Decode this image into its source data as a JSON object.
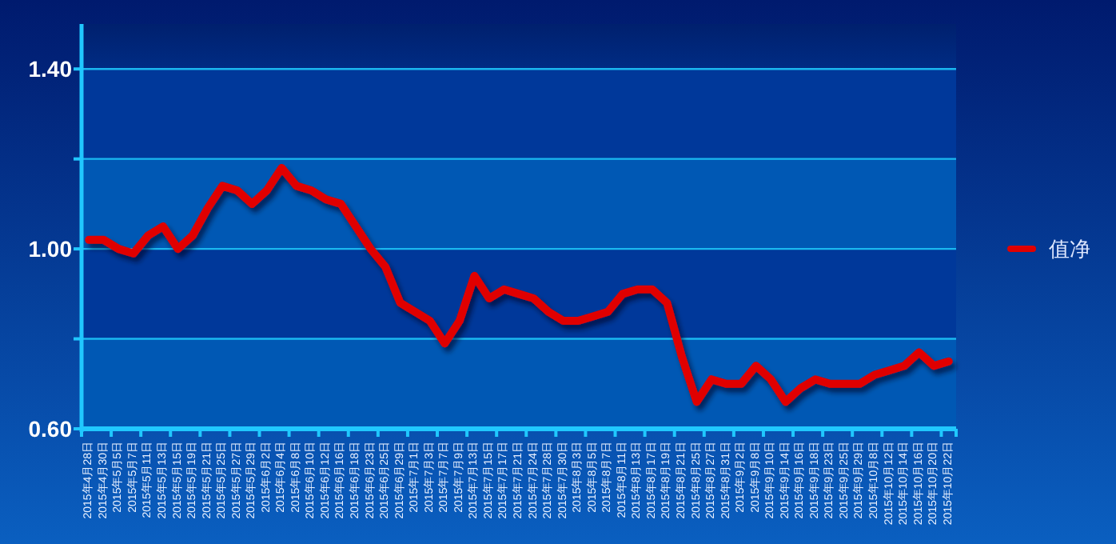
{
  "chart_data": {
    "type": "line",
    "categories": [
      "2015年4月28日",
      "2015年4月30日",
      "2015年5月5日",
      "2015年5月7日",
      "2015年5月11日",
      "2015年5月13日",
      "2015年5月15日",
      "2015年5月19日",
      "2015年5月21日",
      "2015年5月25日",
      "2015年5月27日",
      "2015年5月29日",
      "2015年6月2日",
      "2015年6月4日",
      "2015年6月8日",
      "2015年6月10日",
      "2015年6月12日",
      "2015年6月16日",
      "2015年6月18日",
      "2015年6月23日",
      "2015年6月25日",
      "2015年6月29日",
      "2015年7月1日",
      "2015年7月3日",
      "2015年7月7日",
      "2015年7月9日",
      "2015年7月13日",
      "2015年7月15日",
      "2015年7月17日",
      "2015年7月21日",
      "2015年7月24日",
      "2015年7月28日",
      "2015年7月30日",
      "2015年8月3日",
      "2015年8月5日",
      "2015年8月7日",
      "2015年8月11日",
      "2015年8月13日",
      "2015年8月17日",
      "2015年8月19日",
      "2015年8月21日",
      "2015年8月25日",
      "2015年8月27日",
      "2015年8月31日",
      "2015年9月2日",
      "2015年9月8日",
      "2015年9月10日",
      "2015年9月14日",
      "2015年9月16日",
      "2015年9月18日",
      "2015年9月23日",
      "2015年9月25日",
      "2015年9月29日",
      "2015年10月8日",
      "2015年10月12日",
      "2015年10月14日",
      "2015年10月16日",
      "2015年10月20日",
      "2015年10月22日"
    ],
    "series": [
      {
        "name": "值净",
        "color": "#e00000",
        "values": [
          1.02,
          1.02,
          1.0,
          0.99,
          1.03,
          1.05,
          1.0,
          1.03,
          1.09,
          1.14,
          1.13,
          1.1,
          1.13,
          1.18,
          1.14,
          1.13,
          1.11,
          1.1,
          1.05,
          1.0,
          0.96,
          0.88,
          0.86,
          0.84,
          0.79,
          0.84,
          0.94,
          0.89,
          0.91,
          0.9,
          0.89,
          0.86,
          0.84,
          0.84,
          0.85,
          0.86,
          0.9,
          0.91,
          0.91,
          0.88,
          0.76,
          0.66,
          0.71,
          0.7,
          0.7,
          0.74,
          0.71,
          0.66,
          0.69,
          0.71,
          0.7,
          0.7,
          0.7,
          0.72,
          0.73,
          0.74,
          0.77,
          0.74,
          0.75
        ]
      }
    ],
    "ylim": [
      0.6,
      1.5
    ],
    "yticks": [
      {
        "value": 0.6,
        "label": "0.60"
      },
      {
        "value": 0.8,
        "label": null
      },
      {
        "value": 1.0,
        "label": "1.00"
      },
      {
        "value": 1.2,
        "label": null
      },
      {
        "value": 1.4,
        "label": "1.40"
      }
    ],
    "grid": "y",
    "legend": "right",
    "marker": "none",
    "line_style": "solid"
  }
}
